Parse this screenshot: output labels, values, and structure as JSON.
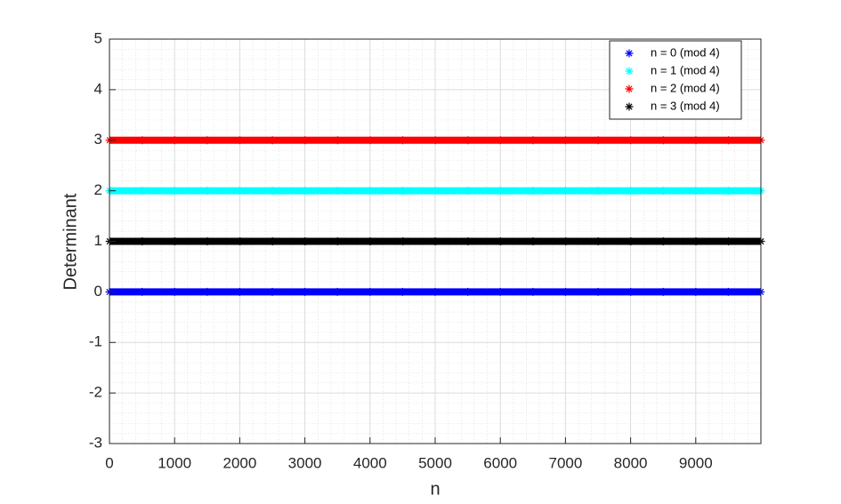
{
  "chart_data": {
    "type": "line",
    "marker": "*",
    "xlabel": "n",
    "ylabel": "Determinant",
    "xlim": [
      0,
      10000
    ],
    "xticks": [
      0,
      1000,
      2000,
      3000,
      4000,
      5000,
      6000,
      7000,
      8000,
      9000
    ],
    "ylim": [
      -3,
      5
    ],
    "yticks": [
      -3,
      -2,
      -1,
      0,
      1,
      2,
      3,
      4,
      5
    ],
    "grid": true,
    "minor_grid": true,
    "legend": "northeast",
    "series": [
      {
        "name": "n = 0 (mod 4)",
        "color": "#0000ff",
        "x": [
          0,
          500,
          1000,
          1500,
          2000,
          2500,
          3000,
          3500,
          4000,
          4500,
          5000,
          5500,
          6000,
          6500,
          7000,
          7500,
          8000,
          8500,
          9000,
          9500,
          9996
        ],
        "values": [
          0,
          0,
          0,
          0,
          0,
          0,
          0,
          0,
          0,
          0,
          0,
          0,
          0,
          0,
          0,
          0,
          0,
          0,
          0,
          0,
          0
        ]
      },
      {
        "name": "n = 1 (mod 4)",
        "color": "#00ffff",
        "x": [
          1,
          501,
          1001,
          1501,
          2001,
          2501,
          3001,
          3501,
          4001,
          4501,
          5001,
          5501,
          6001,
          6501,
          7001,
          7501,
          8001,
          8501,
          9001,
          9501,
          9997
        ],
        "values": [
          2,
          2,
          2,
          2,
          2,
          2,
          2,
          2,
          2,
          2,
          2,
          2,
          2,
          2,
          2,
          2,
          2,
          2,
          2,
          2,
          2
        ]
      },
      {
        "name": "n = 2 (mod 4)",
        "color": "#ff0000",
        "x": [
          2,
          502,
          1002,
          1502,
          2002,
          2502,
          3002,
          3502,
          4002,
          4502,
          5002,
          5502,
          6002,
          6502,
          7002,
          7502,
          8002,
          8502,
          9002,
          9502,
          9998
        ],
        "values": [
          3,
          3,
          3,
          3,
          3,
          3,
          3,
          3,
          3,
          3,
          3,
          3,
          3,
          3,
          3,
          3,
          3,
          3,
          3,
          3,
          3
        ]
      },
      {
        "name": "n = 3 (mod 4)",
        "color": "#000000",
        "x": [
          3,
          503,
          1003,
          1503,
          2003,
          2503,
          3003,
          3503,
          4003,
          4503,
          5003,
          5503,
          6003,
          6503,
          7003,
          7503,
          8003,
          8503,
          9003,
          9503,
          9999
        ],
        "values": [
          1,
          1,
          1,
          1,
          1,
          1,
          1,
          1,
          1,
          1,
          1,
          1,
          1,
          1,
          1,
          1,
          1,
          1,
          1,
          1,
          1
        ]
      }
    ]
  }
}
